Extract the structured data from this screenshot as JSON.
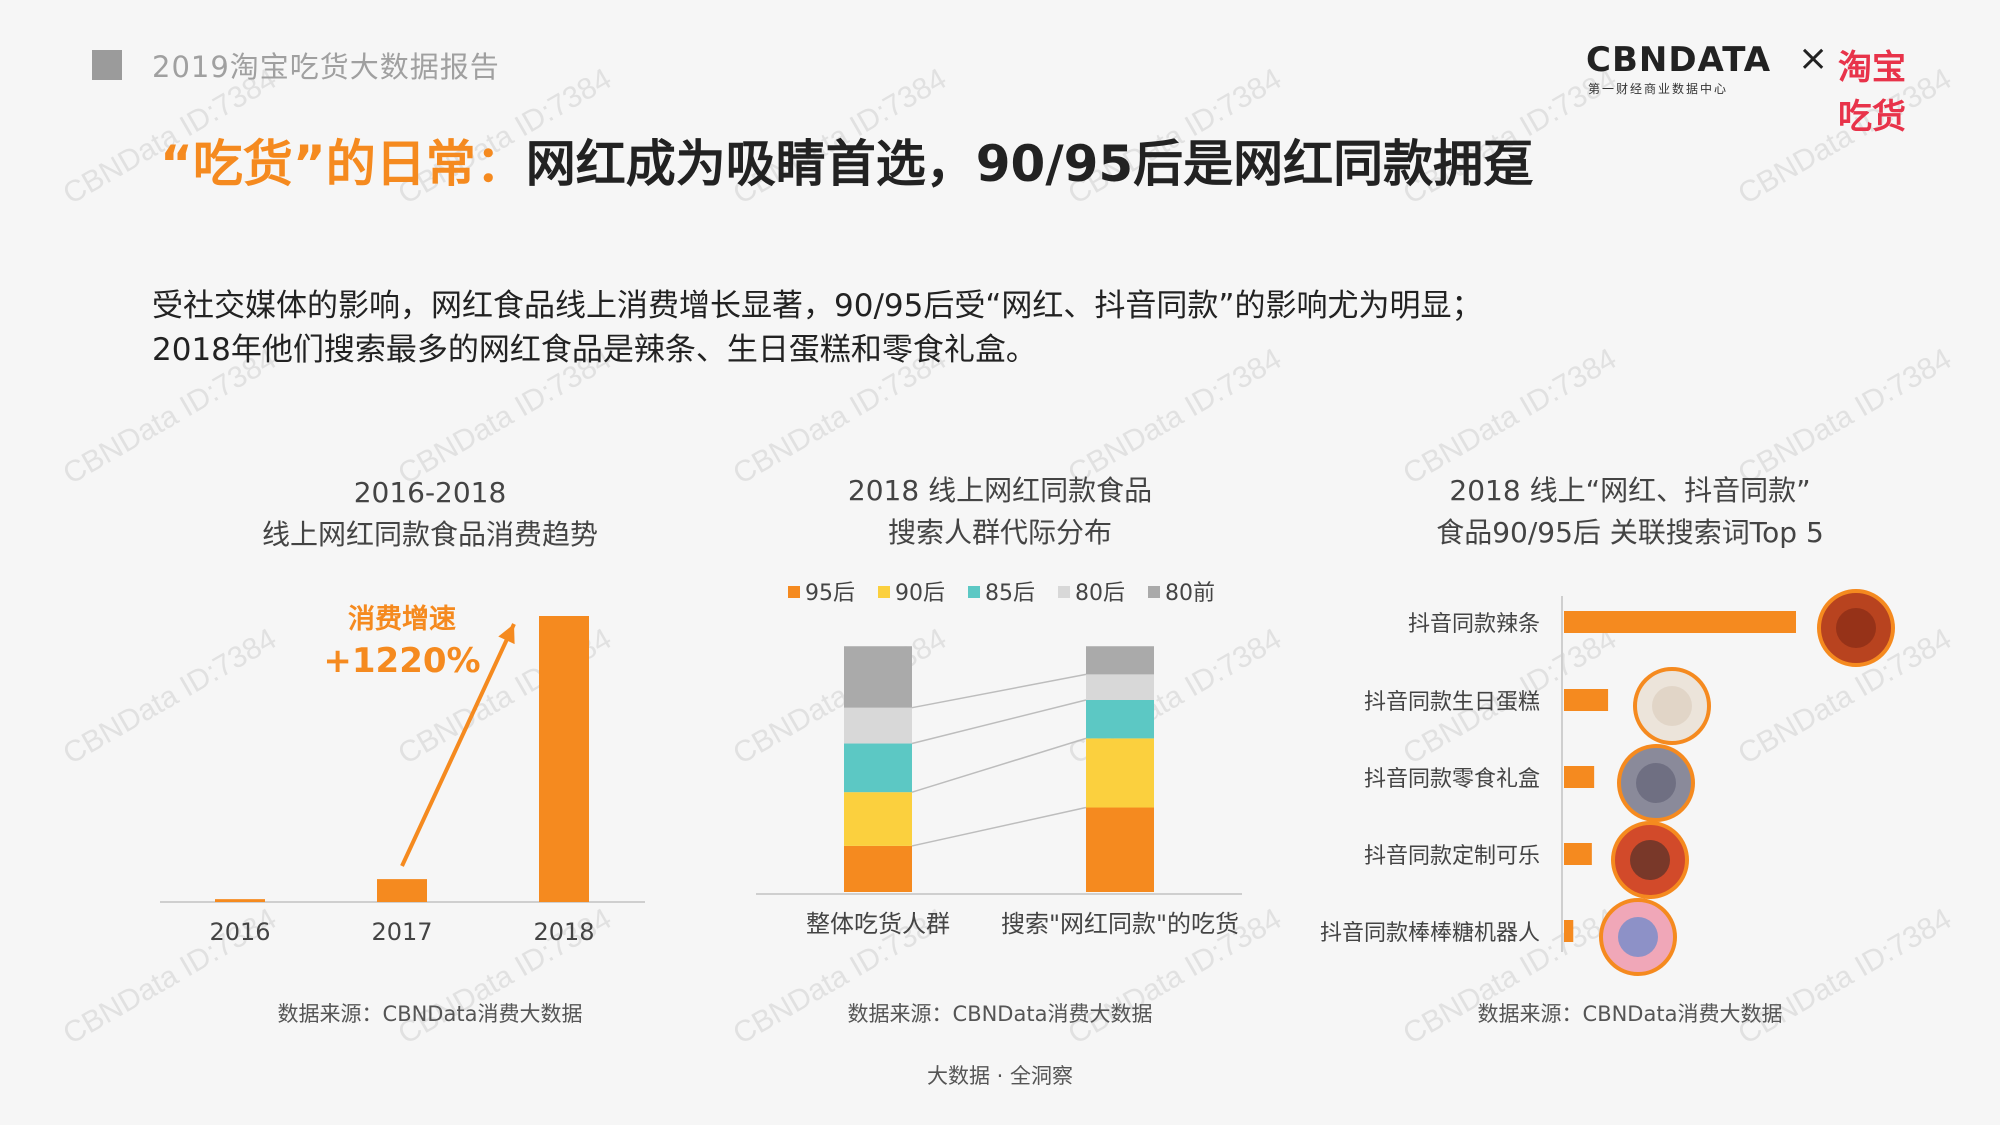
{
  "header": {
    "report_title": "2019淘宝吃货大数据报告",
    "brand_cbn": "CBNDATA",
    "brand_cbn_sub": "第一财经商业数据中心",
    "brand_cross": "×",
    "brand_taobao": "淘宝吃货"
  },
  "headline": {
    "highlight": "“吃货”的日常：",
    "rest": "网红成为吸睛首选，90/95后是网红同款拥趸"
  },
  "intro": {
    "line1": "受社交媒体的影响，网红食品线上消费增长显著，90/95后受“网红、抖音同款”的影响尤为明显；",
    "line2": "2018年他们搜索最多的网红食品是辣条、生日蛋糕和零食礼盒。"
  },
  "charts": {
    "left": {
      "title_line1": "2016-2018",
      "title_line2": "线上网红同款食品消费趋势",
      "annotation_label": "消费增速",
      "annotation_value": "+1220%",
      "source": "数据来源：CBNData消费大数据"
    },
    "middle": {
      "title_line1": "2018 线上网红同款食品",
      "title_line2": "搜索人群代际分布",
      "source": "数据来源：CBNData消费大数据"
    },
    "right": {
      "title_line1": "2018 线上“网红、抖音同款”",
      "title_line2": "食品90/95后 关联搜索词Top 5",
      "source": "数据来源：CBNData消费大数据"
    }
  },
  "footer": "大数据 · 全洞察",
  "watermark": "CBNData ID:7384",
  "colors": {
    "accent": "#f58a1f",
    "c95": "#f58a1f",
    "c90": "#fbd03e",
    "c85": "#5cc8c4",
    "c80": "#d8d8d8",
    "c80pre": "#aaaaaa"
  },
  "chart_data": [
    {
      "type": "bar",
      "categories": [
        "2016",
        "2017",
        "2018"
      ],
      "values": [
        1,
        8,
        100
      ],
      "ylim": [
        0,
        100
      ]
    },
    {
      "type": "bar",
      "stacked": true,
      "categories": [
        "整体吃货人群",
        "搜索\"网红同款\"的吃货"
      ],
      "legend_position": "top",
      "series": [
        {
          "name": "95后",
          "values": [
            18,
            33
          ]
        },
        {
          "name": "90后",
          "values": [
            21,
            27
          ]
        },
        {
          "name": "85后",
          "values": [
            19,
            15
          ]
        },
        {
          "name": "80后",
          "values": [
            14,
            10
          ]
        },
        {
          "name": "80前",
          "values": [
            24,
            11
          ]
        }
      ],
      "ylim": [
        0,
        100
      ]
    },
    {
      "type": "bar",
      "orientation": "horizontal",
      "categories": [
        "抖音同款辣条",
        "抖音同款生日蛋糕",
        "抖音同款零食礼盒",
        "抖音同款定制可乐",
        "抖音同款棒棒糖机器人"
      ],
      "values": [
        100,
        19,
        13,
        12,
        4
      ],
      "xlim": [
        0,
        100
      ]
    }
  ]
}
